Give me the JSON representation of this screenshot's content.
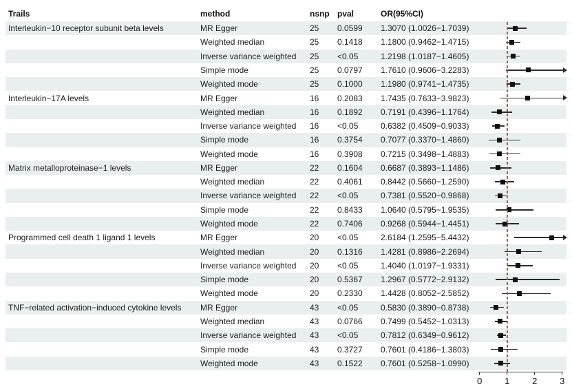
{
  "header": {
    "trait": "Trails",
    "method": "method",
    "nsnp": "nsnp",
    "pval": "pval",
    "or_ci": "OR(95%CI)"
  },
  "colors": {
    "stripe": "#e9efee",
    "reference_line": "#e8413c",
    "marker": "#111111",
    "ci_line": "#2b2b2b"
  },
  "chart_data": {
    "type": "scatter",
    "subtype": "forest-plot",
    "title": "",
    "xlabel": "",
    "xlim": [
      0,
      3
    ],
    "x_ticks": [
      "0",
      "1",
      "2",
      "3"
    ],
    "reference_line_x": 1,
    "grid": false,
    "rows": [
      {
        "trait": "Interleukin−10 receptor subunit beta levels",
        "method": "MR Egger",
        "nsnp": "25",
        "pval": "0.0599",
        "or_ci": "1.3070 (1.0026−1.7039)",
        "or": 1.307,
        "lo": 1.0026,
        "hi": 1.7039
      },
      {
        "trait": "",
        "method": "Weighted median",
        "nsnp": "25",
        "pval": "0.1418",
        "or_ci": "1.1800 (0.9462−1.4715)",
        "or": 1.18,
        "lo": 0.9462,
        "hi": 1.4715
      },
      {
        "trait": "",
        "method": "Inverse variance weighted",
        "nsnp": "25",
        "pval": "<0.05",
        "or_ci": "1.2198 (1.0187−1.4605)",
        "or": 1.2198,
        "lo": 1.0187,
        "hi": 1.4605
      },
      {
        "trait": "",
        "method": "Simple mode",
        "nsnp": "25",
        "pval": "0.0797",
        "or_ci": "1.7610 (0.9606−3.2283)",
        "or": 1.761,
        "lo": 0.9606,
        "hi": 3.2283
      },
      {
        "trait": "",
        "method": "Weighted mode",
        "nsnp": "25",
        "pval": "0.1000",
        "or_ci": "1.1980 (0.9741−1.4735)",
        "or": 1.198,
        "lo": 0.9741,
        "hi": 1.4735
      },
      {
        "trait": "Interleukin−17A levels",
        "method": "MR Egger",
        "nsnp": "16",
        "pval": "0.2083",
        "or_ci": "1.7435 (0.7633−3.9823)",
        "or": 1.7435,
        "lo": 0.7633,
        "hi": 3.9823
      },
      {
        "trait": "",
        "method": "Weighted median",
        "nsnp": "16",
        "pval": "0.1892",
        "or_ci": "0.7191 (0.4396−1.1764)",
        "or": 0.7191,
        "lo": 0.4396,
        "hi": 1.1764
      },
      {
        "trait": "",
        "method": "Inverse variance weighted",
        "nsnp": "16",
        "pval": "<0.05",
        "or_ci": "0.6382 (0.4509−0.9033)",
        "or": 0.6382,
        "lo": 0.4509,
        "hi": 0.9033
      },
      {
        "trait": "",
        "method": "Simple mode",
        "nsnp": "16",
        "pval": "0.3754",
        "or_ci": "0.7077 (0.3370−1.4860)",
        "or": 0.7077,
        "lo": 0.337,
        "hi": 1.486
      },
      {
        "trait": "",
        "method": "Weighted mode",
        "nsnp": "16",
        "pval": "0.3908",
        "or_ci": "0.7215 (0.3498−1.4883)",
        "or": 0.7215,
        "lo": 0.3498,
        "hi": 1.4883
      },
      {
        "trait": "Matrix metalloproteinase−1 levels",
        "method": "MR Egger",
        "nsnp": "22",
        "pval": "0.1604",
        "or_ci": "0.6687 (0.3893−1.1486)",
        "or": 0.6687,
        "lo": 0.3893,
        "hi": 1.1486
      },
      {
        "trait": "",
        "method": "Weighted median",
        "nsnp": "22",
        "pval": "0.4061",
        "or_ci": "0.8442 (0.5660−1.2590)",
        "or": 0.8442,
        "lo": 0.566,
        "hi": 1.259
      },
      {
        "trait": "",
        "method": "Inverse variance weighted",
        "nsnp": "22",
        "pval": "<0.05",
        "or_ci": "0.7381 (0.5520−0.9868)",
        "or": 0.7381,
        "lo": 0.552,
        "hi": 0.9868
      },
      {
        "trait": "",
        "method": "Simple mode",
        "nsnp": "22",
        "pval": "0.8433",
        "or_ci": "1.0640 (0.5795−1.9535)",
        "or": 1.064,
        "lo": 0.5795,
        "hi": 1.9535
      },
      {
        "trait": "",
        "method": "Weighted mode",
        "nsnp": "22",
        "pval": "0.7406",
        "or_ci": "0.9268 (0.5944−1.4451)",
        "or": 0.9268,
        "lo": 0.5944,
        "hi": 1.4451
      },
      {
        "trait": "Programmed cell death 1 ligand 1 levels",
        "method": "MR Egger",
        "nsnp": "20",
        "pval": "<0.05",
        "or_ci": "2.6184 (1.2595−5.4432)",
        "or": 2.6184,
        "lo": 1.2595,
        "hi": 5.4432
      },
      {
        "trait": "",
        "method": "Weighted median",
        "nsnp": "20",
        "pval": "0.1316",
        "or_ci": "1.4281 (0.8986−2.2694)",
        "or": 1.4281,
        "lo": 0.8986,
        "hi": 2.2694
      },
      {
        "trait": "",
        "method": "Inverse variance weighted",
        "nsnp": "20",
        "pval": "<0.05",
        "or_ci": "1.4040 (1.0197−1.9331)",
        "or": 1.404,
        "lo": 1.0197,
        "hi": 1.9331
      },
      {
        "trait": "",
        "method": "Simple mode",
        "nsnp": "20",
        "pval": "0.5367",
        "or_ci": "1.2967 (0.5772−2.9132)",
        "or": 1.2967,
        "lo": 0.5772,
        "hi": 2.9132
      },
      {
        "trait": "",
        "method": "Weighted mode",
        "nsnp": "20",
        "pval": "0.2330",
        "or_ci": "1.4428 (0.8052−2.5852)",
        "or": 1.4428,
        "lo": 0.8052,
        "hi": 2.5852
      },
      {
        "trait": "TNF−related activation−induced cytokine levels",
        "method": "MR Egger",
        "nsnp": "43",
        "pval": "<0.05",
        "or_ci": "0.5830 (0.3890−0.8738)",
        "or": 0.583,
        "lo": 0.389,
        "hi": 0.8738
      },
      {
        "trait": "",
        "method": "Weighted median",
        "nsnp": "43",
        "pval": "0.0766",
        "or_ci": "0.7499 (0.5452−1.0313)",
        "or": 0.7499,
        "lo": 0.5452,
        "hi": 1.0313
      },
      {
        "trait": "",
        "method": "Inverse variance weighted",
        "nsnp": "43",
        "pval": "<0.05",
        "or_ci": "0.7812 (0.6349−0.9612)",
        "or": 0.7812,
        "lo": 0.6349,
        "hi": 0.9612
      },
      {
        "trait": "",
        "method": "Simple mode",
        "nsnp": "43",
        "pval": "0.3727",
        "or_ci": "0.7601 (0.4186−1.3803)",
        "or": 0.7601,
        "lo": 0.4186,
        "hi": 1.3803
      },
      {
        "trait": "",
        "method": "Weighted mode",
        "nsnp": "43",
        "pval": "0.1522",
        "or_ci": "0.7601 (0.5258−1.0990)",
        "or": 0.7601,
        "lo": 0.5258,
        "hi": 1.099
      }
    ]
  }
}
